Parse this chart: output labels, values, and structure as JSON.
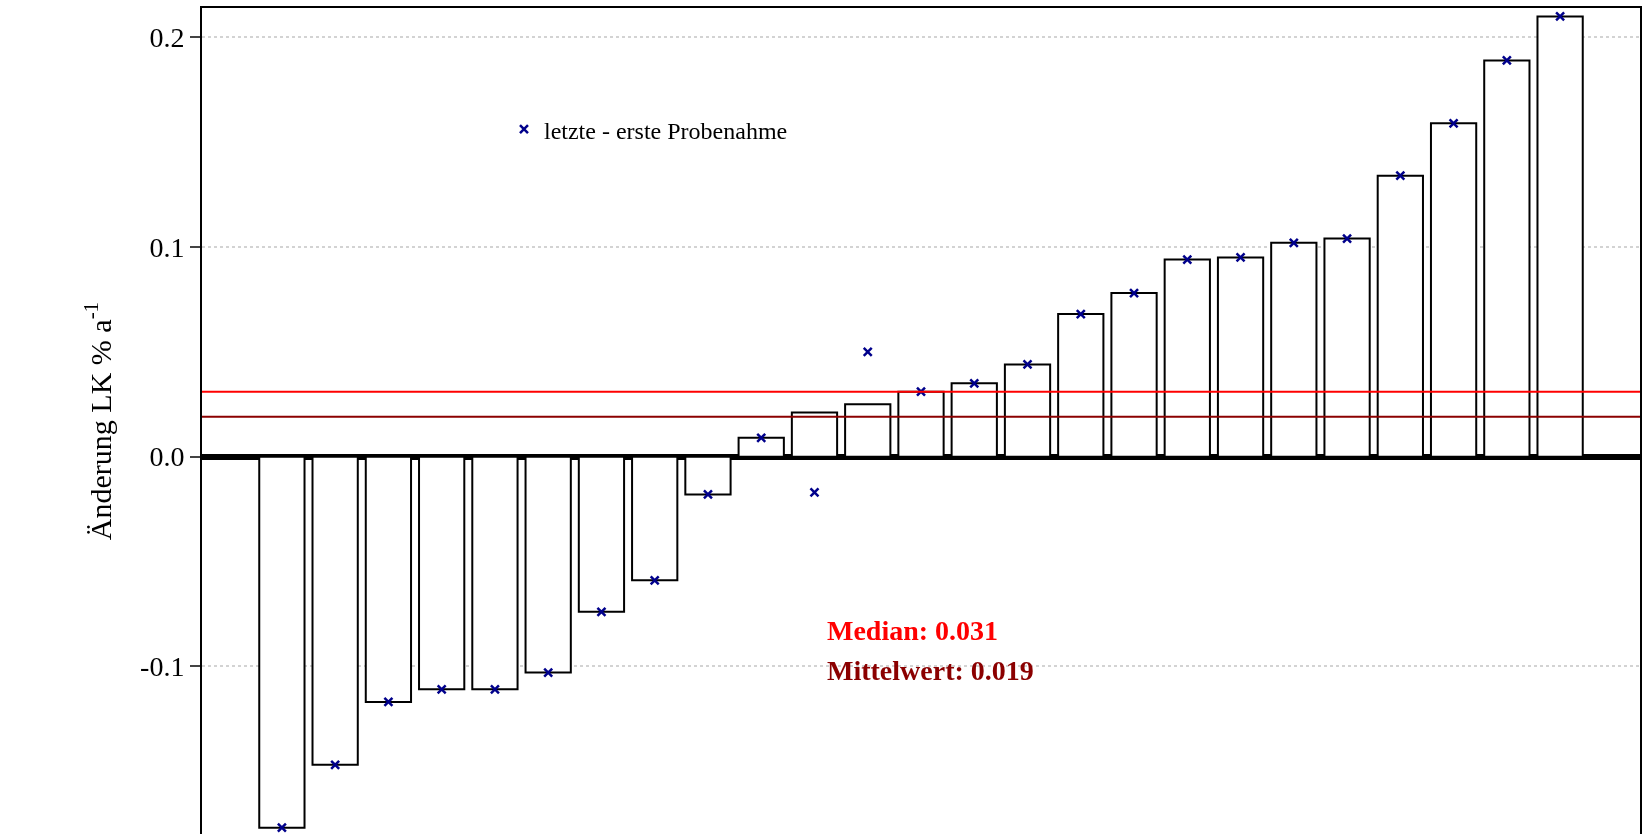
{
  "chart_data": {
    "type": "bar",
    "ylabel": "Änderung LK % a$^{-1}$",
    "categories": [
      null,
      null,
      null,
      null,
      null,
      null,
      null,
      null,
      null,
      null,
      null,
      null,
      null,
      null,
      null,
      null,
      null,
      null,
      null,
      null,
      null,
      null,
      null,
      null,
      null,
      null,
      null
    ],
    "series": [
      {
        "color": "#ffffff",
        "values": [
          null,
          -0.177,
          -0.147,
          -0.117,
          -0.111,
          -0.111,
          -0.103,
          -0.074,
          -0.059,
          -0.018,
          0.009,
          0.021,
          0.025,
          0.031,
          0.035,
          0.044,
          0.068,
          0.078,
          0.094,
          0.095,
          0.102,
          0.104,
          0.134,
          0.159,
          0.189,
          0.21,
          null
        ]
      },
      {
        "type": "scatter",
        "name": "letzte - erste Probenahme",
        "color": "#00008b",
        "values": [
          null,
          -0.177,
          -0.147,
          -0.117,
          -0.111,
          -0.111,
          -0.103,
          -0.074,
          -0.059,
          -0.018,
          0.009,
          -0.017,
          0.05,
          0.031,
          0.035,
          0.044,
          0.068,
          0.078,
          0.094,
          0.095,
          0.102,
          0.104,
          0.134,
          0.159,
          0.189,
          0.21,
          null
        ]
      }
    ],
    "ylim": [
      -0.18,
      0.214
    ],
    "yticks": [
      {
        "value": -0.1,
        "label": "-0.1"
      },
      {
        "value": 0,
        "label": "0.0"
      },
      0.1,
      0.2
    ],
    "ref_lines": [
      {
        "axis": "y",
        "value": 0.031,
        "label": "Median: 0.031",
        "color": "#ff0000"
      },
      {
        "axis": "y",
        "value": 0.019,
        "label": "Mittelwert: 0.019",
        "color": "#8b0000"
      }
    ],
    "grid": "y",
    "legend": "top left",
    "marker": "cross",
    "tick_labels": "y"
  }
}
